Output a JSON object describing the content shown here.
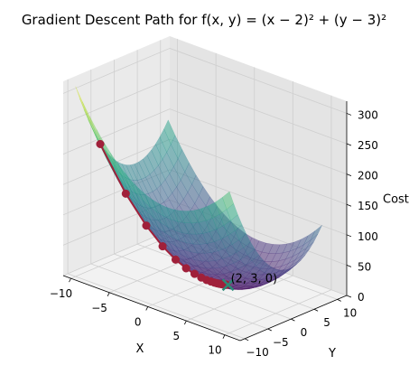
{
  "figure": {
    "title": "Gradient Descent Path for f(x, y) = (x − 2)² + (y − 3)²"
  },
  "chart_data": {
    "type": "surface3d+path",
    "title": "Gradient Descent Path for f(x, y) = (x − 2)² + (y − 3)²",
    "xlabel": "X",
    "ylabel": "Y",
    "zlabel": "Cost",
    "xlim": [
      -11,
      12
    ],
    "ylim": [
      -11,
      12
    ],
    "zlim": [
      0,
      320
    ],
    "x_ticks": [
      -10,
      -5,
      0,
      5,
      10
    ],
    "y_ticks": [
      -10,
      -5,
      0,
      5,
      10
    ],
    "z_ticks": [
      0,
      50,
      100,
      150,
      200,
      250,
      300
    ],
    "x_tick_labels": [
      "−10",
      "−5",
      "0",
      "5",
      "10"
    ],
    "y_tick_labels": [
      "−10",
      "−5",
      "0",
      "5",
      "10"
    ],
    "z_tick_labels": [
      "0",
      "50",
      "100",
      "150",
      "200",
      "250",
      "300"
    ],
    "grid": true,
    "surface": {
      "function": "(x-2)^2 + (y-3)^2",
      "range": [
        -10,
        10
      ],
      "colormap": "viridis",
      "alpha": 0.5
    },
    "path": {
      "color": "#a0203a",
      "marker": "circle",
      "points": [
        {
          "x": -8.0,
          "y": -8.0,
          "z": 221.0
        },
        {
          "x": -6.0,
          "y": -5.8,
          "z": 141.4
        },
        {
          "x": -4.4,
          "y": -4.04,
          "z": 90.5
        },
        {
          "x": -3.12,
          "y": -2.63,
          "z": 57.9
        },
        {
          "x": -2.1,
          "y": -1.51,
          "z": 37.1
        },
        {
          "x": -1.28,
          "y": -0.61,
          "z": 23.7
        },
        {
          "x": -0.62,
          "y": 0.11,
          "z": 15.2
        },
        {
          "x": -0.1,
          "y": 0.69,
          "z": 9.7
        },
        {
          "x": 0.32,
          "y": 1.15,
          "z": 6.2
        },
        {
          "x": 0.66,
          "y": 1.52,
          "z": 4.0
        },
        {
          "x": 0.93,
          "y": 1.82,
          "z": 2.5
        },
        {
          "x": 1.14,
          "y": 2.05,
          "z": 1.6
        },
        {
          "x": 1.31,
          "y": 2.24,
          "z": 1.0
        },
        {
          "x": 1.45,
          "y": 2.39,
          "z": 0.7
        },
        {
          "x": 1.56,
          "y": 2.51,
          "z": 0.4
        },
        {
          "x": 1.65,
          "y": 2.61,
          "z": 0.3
        },
        {
          "x": 1.72,
          "y": 2.69,
          "z": 0.2
        },
        {
          "x": 1.78,
          "y": 2.75,
          "z": 0.1
        },
        {
          "x": 1.82,
          "y": 2.8,
          "z": 0.1
        },
        {
          "x": 1.86,
          "y": 2.84,
          "z": 0.0
        },
        {
          "x": 1.89,
          "y": 2.87,
          "z": 0.0
        }
      ]
    },
    "minimum": {
      "x": 2,
      "y": 3,
      "z": 0,
      "label": "(2, 3, 0)",
      "marker": "x",
      "color": "#2d8b77"
    }
  }
}
